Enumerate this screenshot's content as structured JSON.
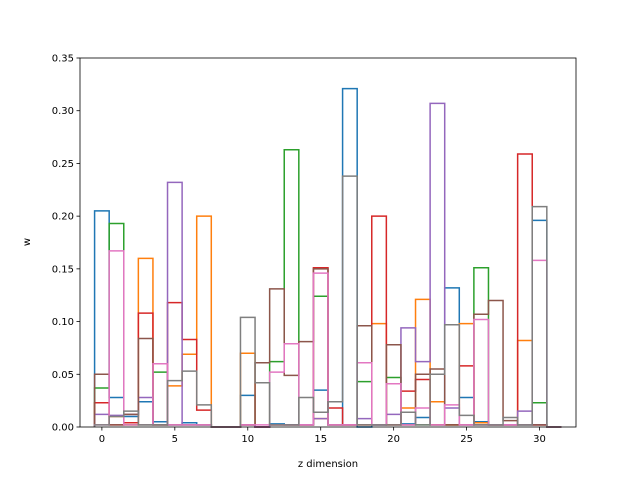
{
  "chart_data": {
    "type": "step",
    "xlabel": "z dimension",
    "ylabel": "w",
    "xlim": [
      -1.5,
      32.5
    ],
    "ylim": [
      0,
      0.35
    ],
    "x_ticks": [
      0,
      5,
      10,
      15,
      20,
      25,
      30
    ],
    "y_ticks": [
      0.0,
      0.05,
      0.1,
      0.15,
      0.2,
      0.25,
      0.3,
      0.35
    ],
    "bin_edges": [
      -0.5,
      0.5,
      1.5,
      2.5,
      3.5,
      4.5,
      5.5,
      6.5,
      7.5,
      8.5,
      9.5,
      10.5,
      11.5,
      12.5,
      13.5,
      14.5,
      15.5,
      16.5,
      17.5,
      18.5,
      19.5,
      20.5,
      21.5,
      22.5,
      23.5,
      24.5,
      25.5,
      26.5,
      27.5,
      28.5,
      29.5,
      30.5,
      31.5
    ],
    "legend": null,
    "grid": false,
    "series": [
      {
        "color": "#1f77b4",
        "values": [
          0.205,
          0.028,
          0.01,
          0.024,
          0.005,
          0.002,
          0.004,
          0.002,
          0.0,
          0.0,
          0.03,
          0.0,
          0.003,
          0.002,
          0.002,
          0.035,
          0.002,
          0.321,
          0.0,
          0.002,
          0.002,
          0.003,
          0.009,
          0.002,
          0.132,
          0.028,
          0.005,
          0.002,
          0.002,
          0.002,
          0.196,
          0.0
        ]
      },
      {
        "color": "#ff7f0e",
        "values": [
          0.023,
          0.01,
          0.002,
          0.16,
          0.002,
          0.039,
          0.069,
          0.2,
          0.0,
          0.0,
          0.07,
          0.0,
          0.002,
          0.002,
          0.002,
          0.008,
          0.002,
          0.002,
          0.002,
          0.098,
          0.002,
          0.018,
          0.121,
          0.024,
          0.002,
          0.098,
          0.004,
          0.002,
          0.002,
          0.082,
          0.002,
          0.0
        ]
      },
      {
        "color": "#2ca02c",
        "values": [
          0.037,
          0.193,
          0.002,
          0.002,
          0.052,
          0.002,
          0.002,
          0.002,
          0.0,
          0.0,
          0.002,
          0.0,
          0.062,
          0.263,
          0.002,
          0.124,
          0.002,
          0.002,
          0.043,
          0.002,
          0.047,
          0.002,
          0.002,
          0.002,
          0.002,
          0.002,
          0.151,
          0.002,
          0.002,
          0.002,
          0.023,
          0.0
        ]
      },
      {
        "color": "#d62728",
        "values": [
          0.023,
          0.002,
          0.004,
          0.108,
          0.002,
          0.118,
          0.083,
          0.016,
          0.0,
          0.0,
          0.002,
          0.0,
          0.002,
          0.002,
          0.002,
          0.151,
          0.018,
          0.002,
          0.002,
          0.2,
          0.002,
          0.034,
          0.045,
          0.002,
          0.002,
          0.058,
          0.002,
          0.002,
          0.002,
          0.259,
          0.002,
          0.0
        ]
      },
      {
        "color": "#9467bd",
        "values": [
          0.012,
          0.011,
          0.012,
          0.028,
          0.002,
          0.232,
          0.002,
          0.002,
          0.0,
          0.0,
          0.002,
          0.0,
          0.002,
          0.002,
          0.002,
          0.008,
          0.002,
          0.002,
          0.008,
          0.002,
          0.012,
          0.094,
          0.062,
          0.307,
          0.018,
          0.002,
          0.002,
          0.002,
          0.002,
          0.015,
          0.002,
          0.0
        ]
      },
      {
        "color": "#8c564b",
        "values": [
          0.05,
          0.002,
          0.012,
          0.084,
          0.002,
          0.002,
          0.002,
          0.002,
          0.0,
          0.0,
          0.002,
          0.061,
          0.131,
          0.049,
          0.081,
          0.15,
          0.002,
          0.002,
          0.096,
          0.002,
          0.078,
          0.002,
          0.05,
          0.055,
          0.002,
          0.002,
          0.107,
          0.12,
          0.006,
          0.002,
          0.002,
          0.0
        ]
      },
      {
        "color": "#e377c2",
        "values": [
          0.002,
          0.167,
          0.002,
          0.002,
          0.06,
          0.002,
          0.002,
          0.002,
          0.0,
          0.0,
          0.002,
          0.002,
          0.052,
          0.079,
          0.002,
          0.146,
          0.002,
          0.002,
          0.061,
          0.002,
          0.041,
          0.002,
          0.018,
          0.002,
          0.021,
          0.002,
          0.102,
          0.002,
          0.002,
          0.002,
          0.158,
          0.0
        ]
      },
      {
        "color": "#7f7f7f",
        "values": [
          0.002,
          0.01,
          0.015,
          0.002,
          0.002,
          0.044,
          0.053,
          0.021,
          0.0,
          0.0,
          0.104,
          0.042,
          0.002,
          0.002,
          0.028,
          0.014,
          0.024,
          0.238,
          0.002,
          0.002,
          0.002,
          0.014,
          0.002,
          0.05,
          0.097,
          0.011,
          0.002,
          0.002,
          0.009,
          0.002,
          0.209,
          0.0
        ]
      }
    ]
  }
}
